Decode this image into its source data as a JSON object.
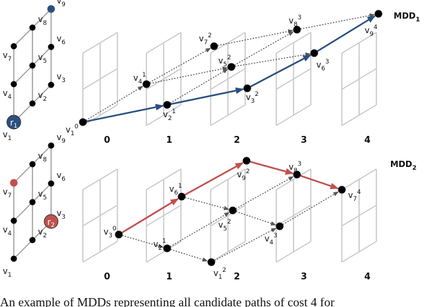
{
  "panels": [
    {
      "title": {
        "main": "MDD",
        "sub": "1"
      },
      "agent": {
        "main": "r",
        "sub": "1"
      },
      "lattice": [
        {
          "base": "v",
          "index": "1"
        },
        {
          "base": "v",
          "index": "2"
        },
        {
          "base": "v",
          "index": "3"
        },
        {
          "base": "v",
          "index": "4"
        },
        {
          "base": "v",
          "index": "5"
        },
        {
          "base": "v",
          "index": "6"
        },
        {
          "base": "v",
          "index": "7"
        },
        {
          "base": "v",
          "index": "8"
        },
        {
          "base": "v",
          "index": "9"
        }
      ],
      "layers": [
        "0",
        "1",
        "2",
        "3",
        "4"
      ],
      "nodes": [
        {
          "base": "v",
          "index": "1",
          "step": "0"
        },
        {
          "base": "v",
          "index": "4",
          "step": "1"
        },
        {
          "base": "v",
          "index": "2",
          "step": "1"
        },
        {
          "base": "v",
          "index": "7",
          "step": "2"
        },
        {
          "base": "v",
          "index": "5",
          "step": "2"
        },
        {
          "base": "v",
          "index": "3",
          "step": "2"
        },
        {
          "base": "v",
          "index": "8",
          "step": "3"
        },
        {
          "base": "v",
          "index": "6",
          "step": "3"
        },
        {
          "base": "v",
          "index": "9",
          "step": "4"
        }
      ]
    },
    {
      "title": {
        "main": "MDD",
        "sub": "2"
      },
      "agent": {
        "main": "r",
        "sub": "2"
      },
      "lattice": [
        {
          "base": "v",
          "index": "1"
        },
        {
          "base": "v",
          "index": "2"
        },
        {
          "base": "v",
          "index": "3"
        },
        {
          "base": "v",
          "index": "4"
        },
        {
          "base": "v",
          "index": "5"
        },
        {
          "base": "v",
          "index": "6"
        },
        {
          "base": "v",
          "index": "7"
        },
        {
          "base": "v",
          "index": "8"
        },
        {
          "base": "v",
          "index": "9"
        }
      ],
      "layers": [
        "0",
        "1",
        "2",
        "3",
        "4"
      ],
      "nodes": [
        {
          "base": "v",
          "index": "3",
          "step": "0"
        },
        {
          "base": "v",
          "index": "6",
          "step": "1"
        },
        {
          "base": "v",
          "index": "2",
          "step": "1"
        },
        {
          "base": "v",
          "index": "9",
          "step": "2"
        },
        {
          "base": "v",
          "index": "5",
          "step": "2"
        },
        {
          "base": "v",
          "index": "1",
          "step": "2"
        },
        {
          "base": "v",
          "index": "8",
          "step": "3"
        },
        {
          "base": "v",
          "index": "4",
          "step": "3"
        },
        {
          "base": "v",
          "index": "7",
          "step": "4"
        }
      ]
    }
  ],
  "caption": "An example of MDDs representing all candidate paths of cost 4 for"
}
